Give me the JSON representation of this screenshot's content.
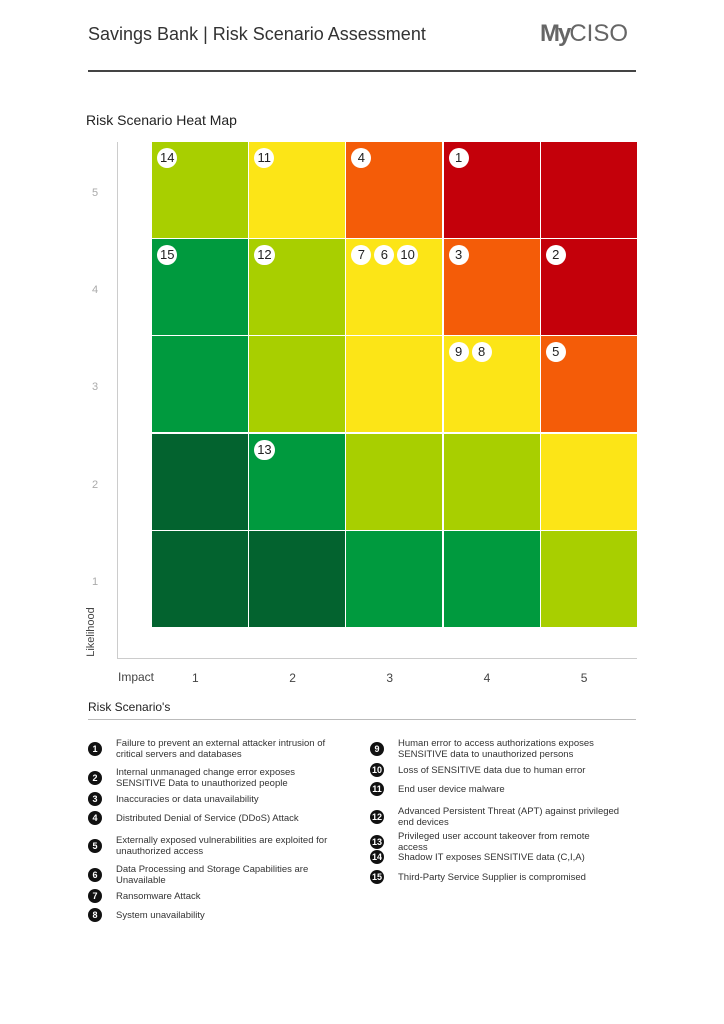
{
  "header": {
    "title": "Savings Bank | Risk Scenario Assessment",
    "logo_text": "MyCISO"
  },
  "chart_data": {
    "type": "heatmap",
    "title": "Risk Scenario Heat Map",
    "xlabel": "Impact",
    "ylabel": "Likelihood",
    "x_ticks": [
      "1",
      "2",
      "3",
      "4",
      "5"
    ],
    "y_ticks": [
      "1",
      "2",
      "3",
      "4",
      "5"
    ],
    "colors": {
      "dark_green": "#03632f",
      "green": "#009a3e",
      "lime": "#a8cf00",
      "yellow": "#fce517",
      "orange": "#f45c08",
      "red": "#c4000a"
    },
    "grid_by_likelihood": {
      "5": [
        "lime",
        "yellow",
        "orange",
        "red",
        "red"
      ],
      "4": [
        "green",
        "lime",
        "yellow",
        "orange",
        "red"
      ],
      "3": [
        "green",
        "lime",
        "yellow",
        "yellow",
        "orange"
      ],
      "2": [
        "dark_green",
        "green",
        "lime",
        "lime",
        "yellow"
      ],
      "1": [
        "dark_green",
        "dark_green",
        "green",
        "green",
        "lime"
      ]
    },
    "points": [
      {
        "id": "14",
        "impact": 1,
        "likelihood": 5
      },
      {
        "id": "11",
        "impact": 2,
        "likelihood": 5
      },
      {
        "id": "4",
        "impact": 3,
        "likelihood": 5
      },
      {
        "id": "1",
        "impact": 4,
        "likelihood": 5
      },
      {
        "id": "15",
        "impact": 1,
        "likelihood": 4
      },
      {
        "id": "12",
        "impact": 2,
        "likelihood": 4
      },
      {
        "id": "7",
        "impact": 3,
        "likelihood": 4
      },
      {
        "id": "6",
        "impact": 3,
        "likelihood": 4
      },
      {
        "id": "10",
        "impact": 3,
        "likelihood": 4
      },
      {
        "id": "3",
        "impact": 4,
        "likelihood": 4
      },
      {
        "id": "2",
        "impact": 5,
        "likelihood": 4
      },
      {
        "id": "9",
        "impact": 4,
        "likelihood": 3
      },
      {
        "id": "8",
        "impact": 4,
        "likelihood": 3
      },
      {
        "id": "5",
        "impact": 5,
        "likelihood": 3
      },
      {
        "id": "13",
        "impact": 2,
        "likelihood": 2
      }
    ]
  },
  "legend": {
    "title": "Risk Scenario's",
    "items": [
      {
        "n": "1",
        "text": "Failure to prevent an external attacker intrusion of critical servers and databases"
      },
      {
        "n": "2",
        "text": "Internal unmanaged change error exposes SENSITIVE Data to unauthorized people"
      },
      {
        "n": "3",
        "text": "Inaccuracies or data unavailability"
      },
      {
        "n": "4",
        "text": "Distributed Denial of Service (DDoS) Attack"
      },
      {
        "n": "5",
        "text": "Externally exposed vulnerabilities are exploited for unauthorized access"
      },
      {
        "n": "6",
        "text": "Data Processing and Storage Capabilities are Unavailable"
      },
      {
        "n": "7",
        "text": "Ransomware Attack"
      },
      {
        "n": "8",
        "text": "System unavailability"
      },
      {
        "n": "9",
        "text": "Human error to access authorizations exposes SENSITIVE  data to unauthorized persons"
      },
      {
        "n": "10",
        "text": "Loss of SENSITIVE data due to human error"
      },
      {
        "n": "11",
        "text": "End user device malware"
      },
      {
        "n": "12",
        "text": "Advanced Persistent Threat (APT) against privileged end devices"
      },
      {
        "n": "13",
        "text": "Privileged user account takeover from remote access"
      },
      {
        "n": "14",
        "text": "Shadow IT exposes SENSITIVE data (C,I,A)"
      },
      {
        "n": "15",
        "text": "Third-Party Service Supplier is compromised"
      }
    ]
  }
}
